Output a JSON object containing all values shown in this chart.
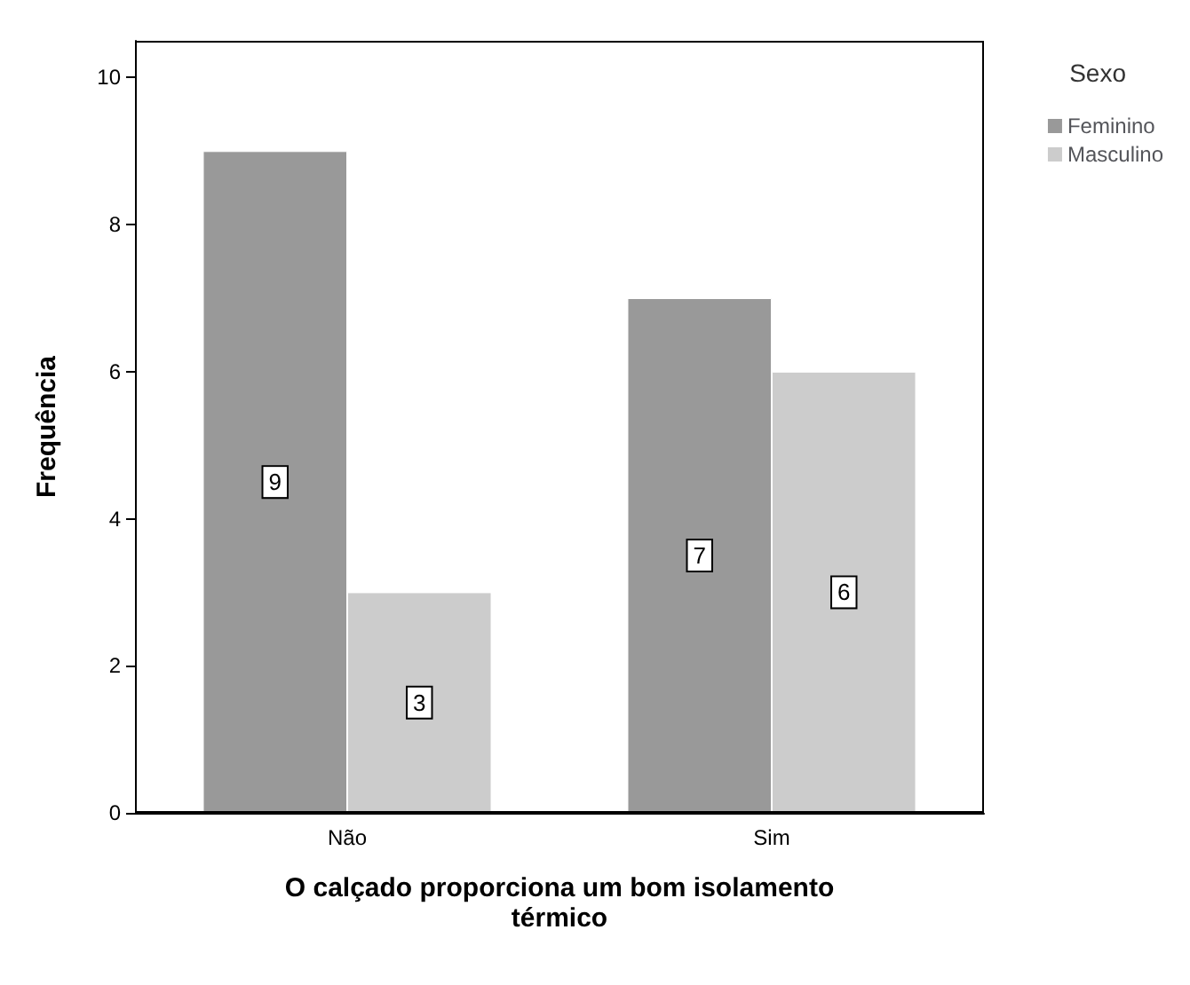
{
  "chart_data": {
    "type": "bar",
    "xlabel": "O calçado proporciona um bom isolamento\ntérmico",
    "ylabel": "Frequência",
    "legend_title": "Sexo",
    "categories": [
      "Não",
      "Sim"
    ],
    "series": [
      {
        "name": "Feminino",
        "color": "#999999",
        "values": [
          9,
          7
        ]
      },
      {
        "name": "Masculino",
        "color": "#cccccc",
        "values": [
          3,
          6
        ]
      }
    ],
    "ylim": [
      0,
      10.5
    ],
    "yticks": [
      0,
      2,
      4,
      6,
      8,
      10
    ],
    "data_labels": true,
    "grid": false,
    "legend": "top right"
  }
}
